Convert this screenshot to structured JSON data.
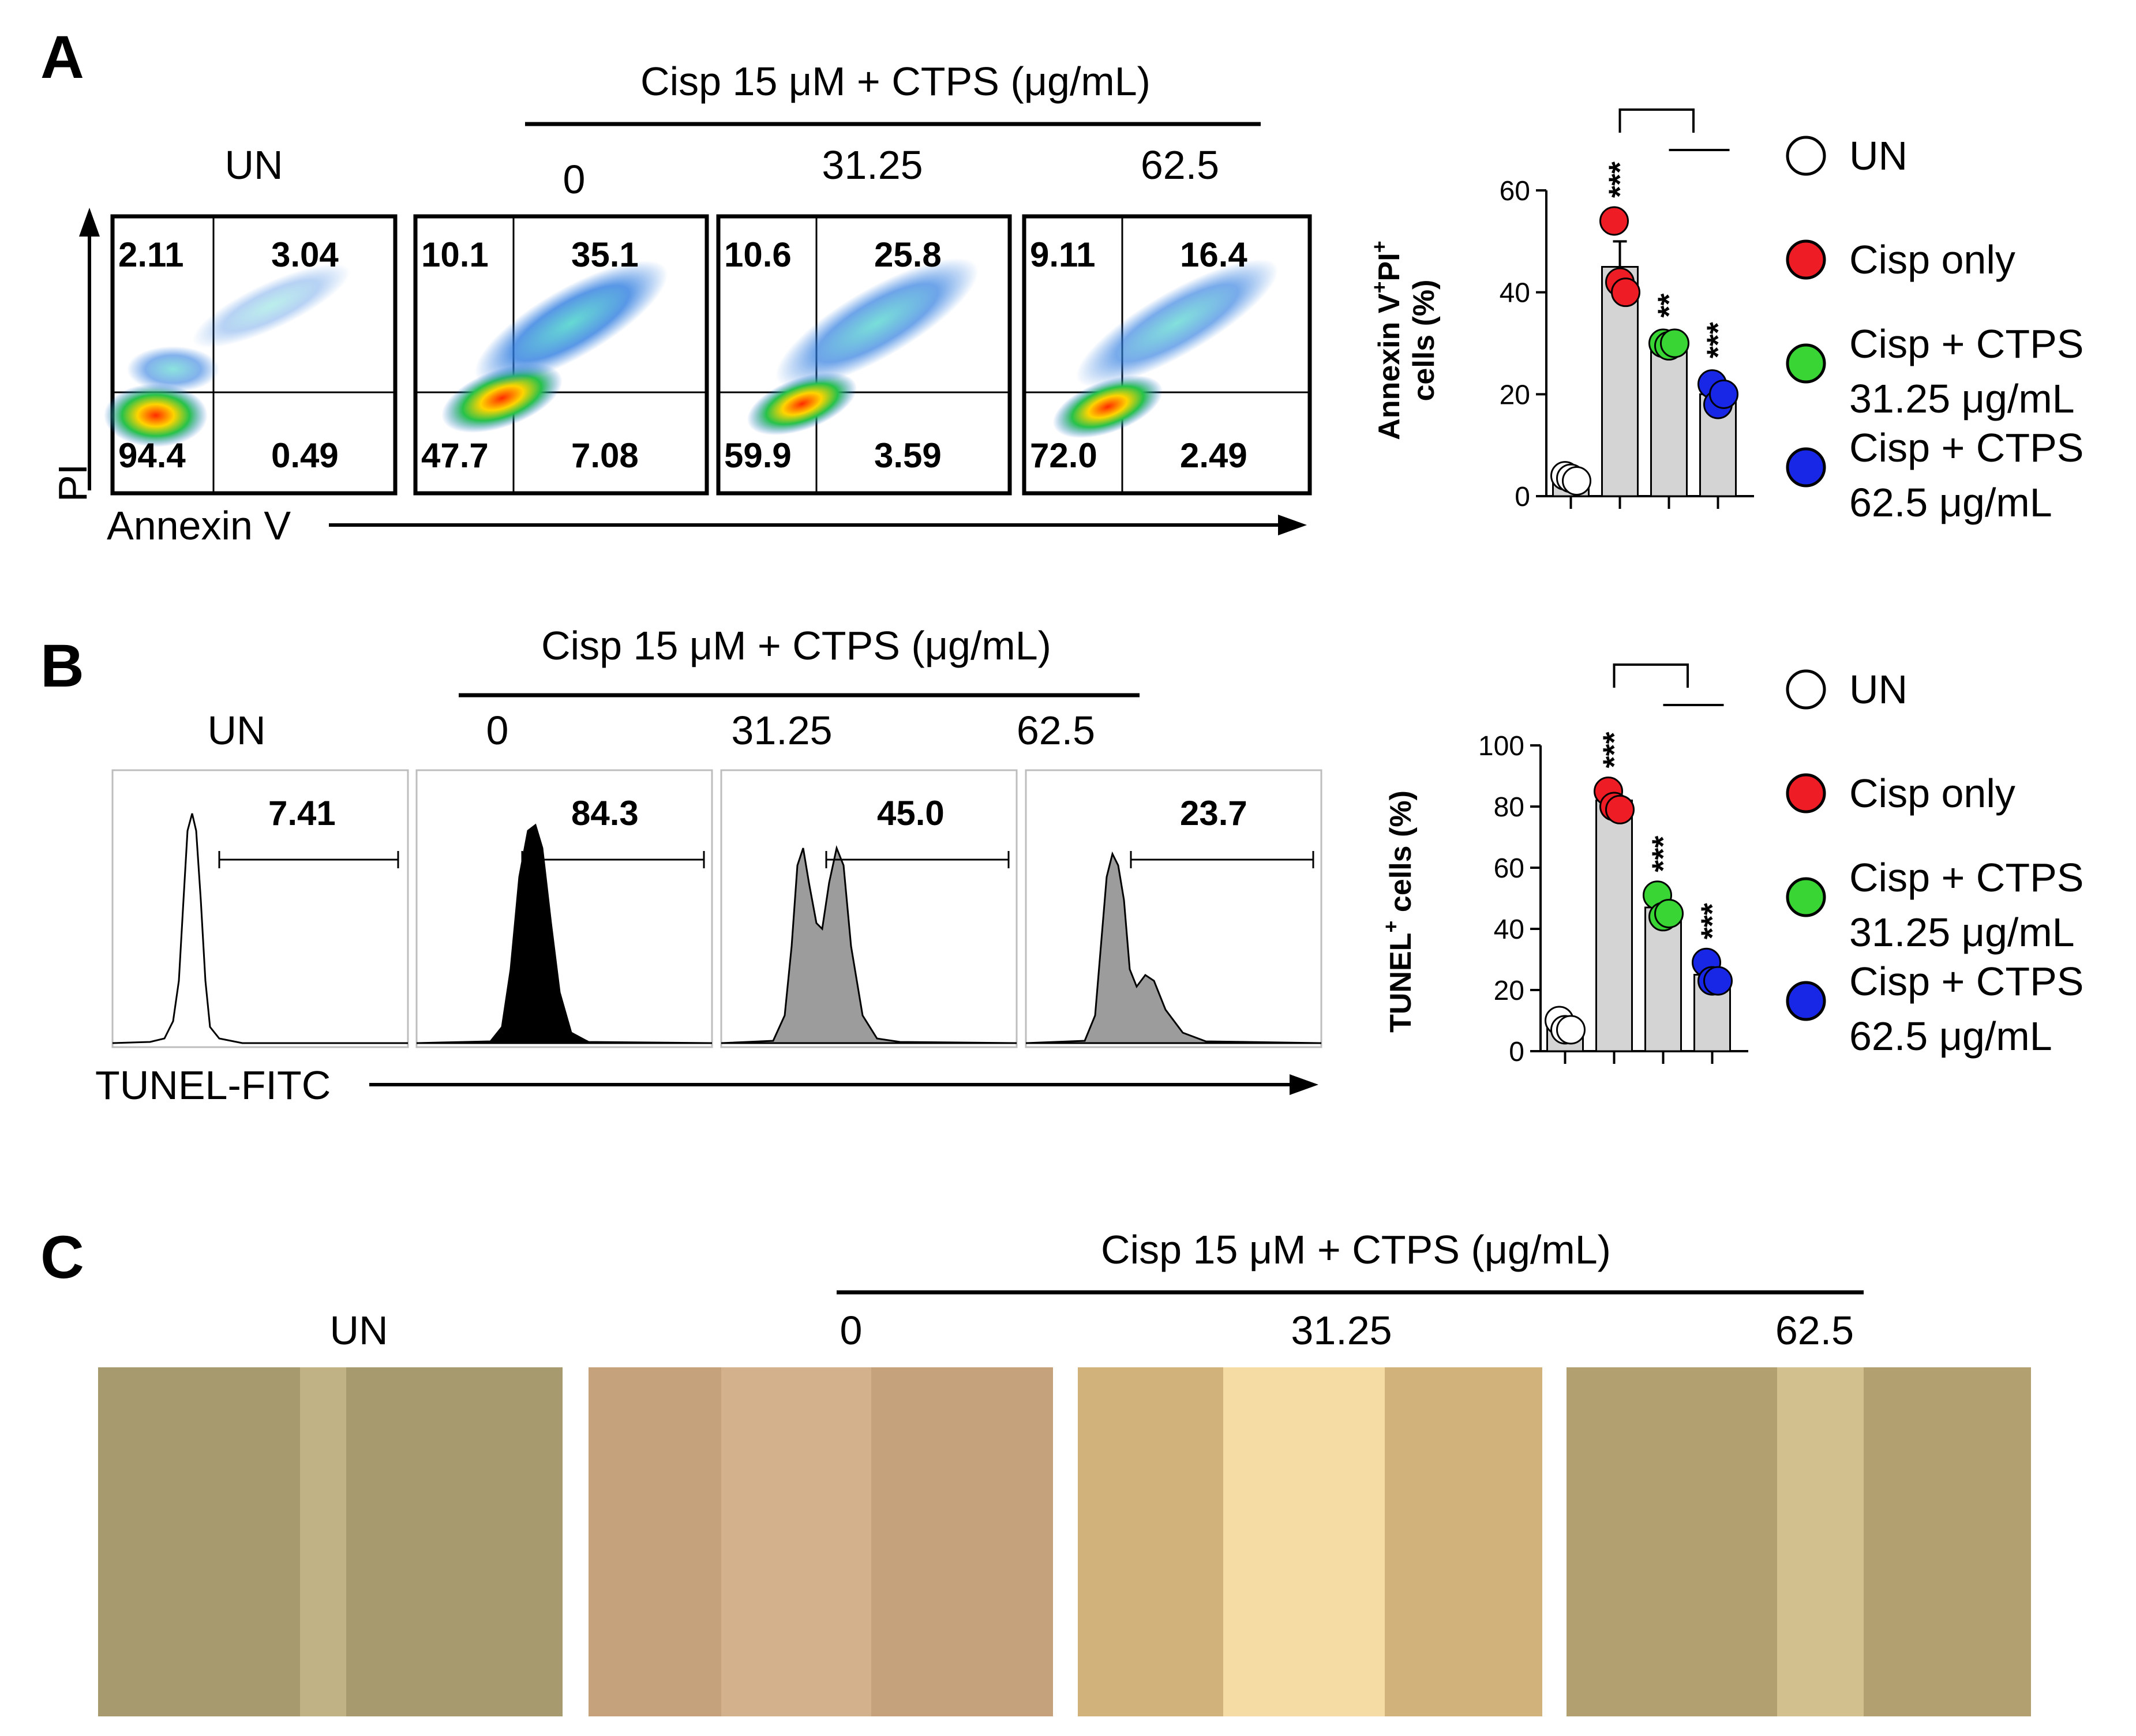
{
  "colors": {
    "un": "#ffffff",
    "cisp_only": "#ee1c24",
    "cisp_ctps_31": "#39d535",
    "cisp_ctps_62": "#1826e6",
    "bar_fill": "#d4d4d4",
    "hist_cisp": "#000000",
    "hist_ctps": "#9c9c9c",
    "micro_un": "#a79a6e",
    "micro_cisp": "#c5a27c",
    "micro_31": "#dcc48b",
    "micro_62": "#b3a071"
  },
  "treatment_header": "Cisp 15 μM + CTPS (μg/mL)",
  "groups": [
    "UN",
    "0",
    "31.25",
    "62.5"
  ],
  "legend": [
    {
      "line1": "UN",
      "line2": "",
      "color_key": "un"
    },
    {
      "line1": "Cisp only",
      "line2": "",
      "color_key": "cisp_only"
    },
    {
      "line1": "Cisp + CTPS",
      "line2": "31.25 μg/mL",
      "color_key": "cisp_ctps_31"
    },
    {
      "line1": "Cisp + CTPS",
      "line2": "62.5 μg/mL",
      "color_key": "cisp_ctps_62"
    }
  ],
  "panel_a": {
    "letter": "A",
    "x_axis": "Annexin V",
    "y_axis": "PI",
    "quadrants": [
      {
        "ul": "2.11",
        "ur": "3.04",
        "ll": "94.4",
        "lr": "0.49"
      },
      {
        "ul": "10.1",
        "ur": "35.1",
        "ll": "47.7",
        "lr": "7.08"
      },
      {
        "ul": "10.6",
        "ur": "25.8",
        "ll": "59.9",
        "lr": "3.59"
      },
      {
        "ul": "9.11",
        "ur": "16.4",
        "ll": "72.0",
        "lr": "2.49"
      }
    ]
  },
  "panel_b": {
    "letter": "B",
    "x_axis": "TUNEL-FITC",
    "gate_values": [
      "7.41",
      "84.3",
      "45.0",
      "23.7"
    ]
  },
  "panel_c": {
    "letter": "C"
  },
  "chart_data": [
    {
      "type": "bar",
      "panel": "A",
      "ylabel_line1": "Annexin V",
      "ylabel_sup1": "+",
      "ylabel_mid": "PI",
      "ylabel_sup2": "+",
      "ylabel_line2": "cells  (%)",
      "ylim": [
        0,
        60
      ],
      "yticks": [
        0,
        20,
        40,
        60
      ],
      "categories": [
        "UN",
        "Cisp only",
        "Cisp + CTPS 31.25 μg/mL",
        "Cisp + CTPS 62.5 μg/mL"
      ],
      "means": [
        3.5,
        45,
        30,
        20
      ],
      "errors": [
        1,
        5,
        0.5,
        2.5
      ],
      "points": [
        [
          4,
          3.5,
          3
        ],
        [
          54,
          42,
          40
        ],
        [
          30,
          29.5,
          30
        ],
        [
          22,
          18,
          20
        ]
      ],
      "significance": [
        "",
        "***",
        "**",
        "***"
      ]
    },
    {
      "type": "bar",
      "panel": "B",
      "ylabel_line1": "TUNEL",
      "ylabel_sup1": "+",
      "ylabel_line2": " cells (%)",
      "ylim": [
        0,
        100
      ],
      "yticks": [
        0,
        20,
        40,
        60,
        80,
        100
      ],
      "categories": [
        "UN",
        "Cisp only",
        "Cisp + CTPS 31.25 μg/mL",
        "Cisp + CTPS 62.5 μg/mL"
      ],
      "means": [
        8,
        82,
        47,
        25
      ],
      "errors": [
        2,
        3,
        4,
        3
      ],
      "points": [
        [
          10,
          7,
          7
        ],
        [
          85,
          80,
          79
        ],
        [
          51,
          44,
          45
        ],
        [
          29,
          23,
          23
        ]
      ],
      "significance": [
        "",
        "***",
        "***",
        "***"
      ]
    }
  ]
}
